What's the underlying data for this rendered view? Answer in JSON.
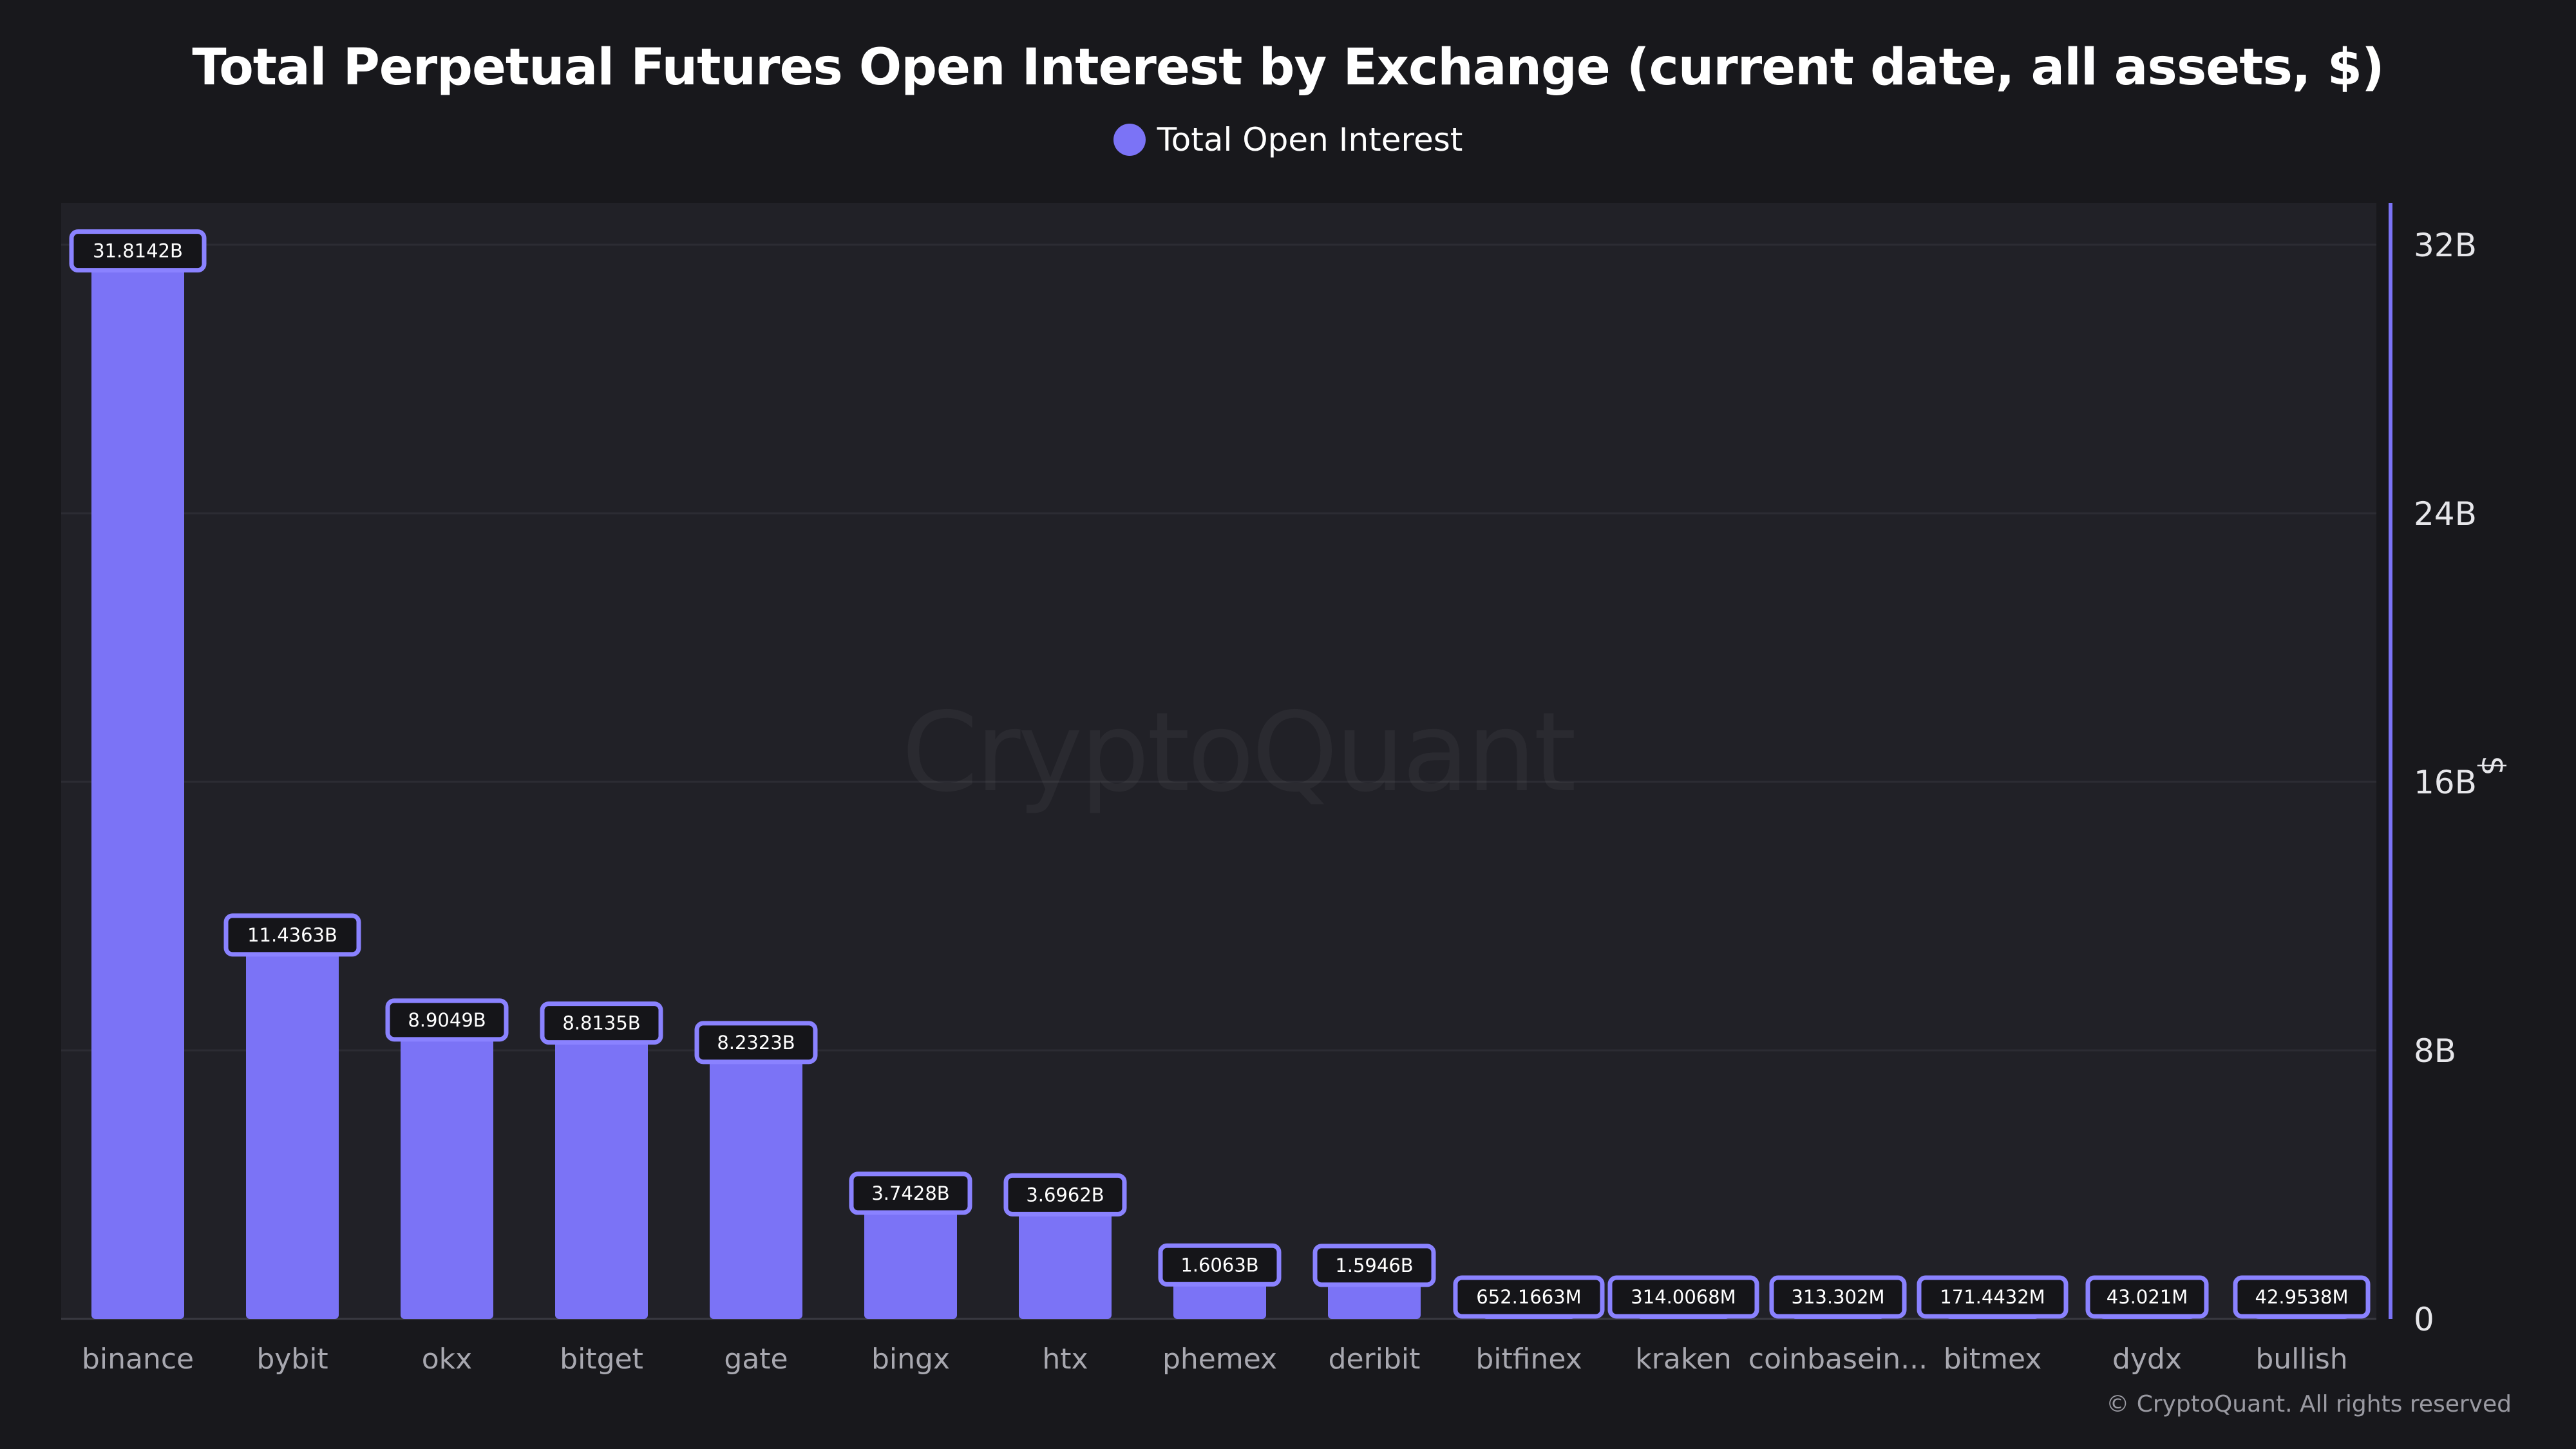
{
  "colors": {
    "background": "#18181c",
    "plot_background": "#212127",
    "bar": "#7b73f6",
    "label_border": "#8a82ff",
    "label_fill": "#151519",
    "axis_line": "#7b73f6",
    "grid": "#2c2c33",
    "tick_text": "#e6e6ea",
    "category_text": "#a8a8b0"
  },
  "legend_icon": "circle",
  "watermark": "CryptoQuant",
  "copyright": "© CryptoQuant. All rights reserved",
  "chart_data": {
    "type": "bar",
    "title": "Total Perpetual Futures Open Interest by Exchange (current date, all assets, $)",
    "xlabel": "",
    "ylabel": "$",
    "ylim": [
      0,
      32000000000
    ],
    "y_axis_position": "right",
    "y_ticks": [
      0,
      8000000000,
      16000000000,
      24000000000,
      32000000000
    ],
    "y_tick_labels": [
      "0",
      "8B",
      "16B",
      "24B",
      "32B"
    ],
    "grid": true,
    "legend_position": "top-center",
    "categories": [
      "binance",
      "bybit",
      "okx",
      "bitget",
      "gate",
      "bingx",
      "htx",
      "phemex",
      "deribit",
      "bitfinex",
      "kraken",
      "coinbasein...",
      "bitmex",
      "dydx",
      "bullish"
    ],
    "series": [
      {
        "name": "Total Open Interest",
        "values": [
          31814200000,
          11436300000,
          8904900000,
          8813500000,
          8232300000,
          3742800000,
          3696200000,
          1606300000,
          1594600000,
          652166300,
          314006800,
          313302000,
          171443200,
          43021000,
          42953800
        ],
        "data_labels": [
          "31.8142B",
          "11.4363B",
          "8.9049B",
          "8.8135B",
          "8.2323B",
          "3.7428B",
          "3.6962B",
          "1.6063B",
          "1.5946B",
          "652.1663M",
          "314.0068M",
          "313.302M",
          "171.4432M",
          "43.021M",
          "42.9538M"
        ]
      }
    ]
  }
}
